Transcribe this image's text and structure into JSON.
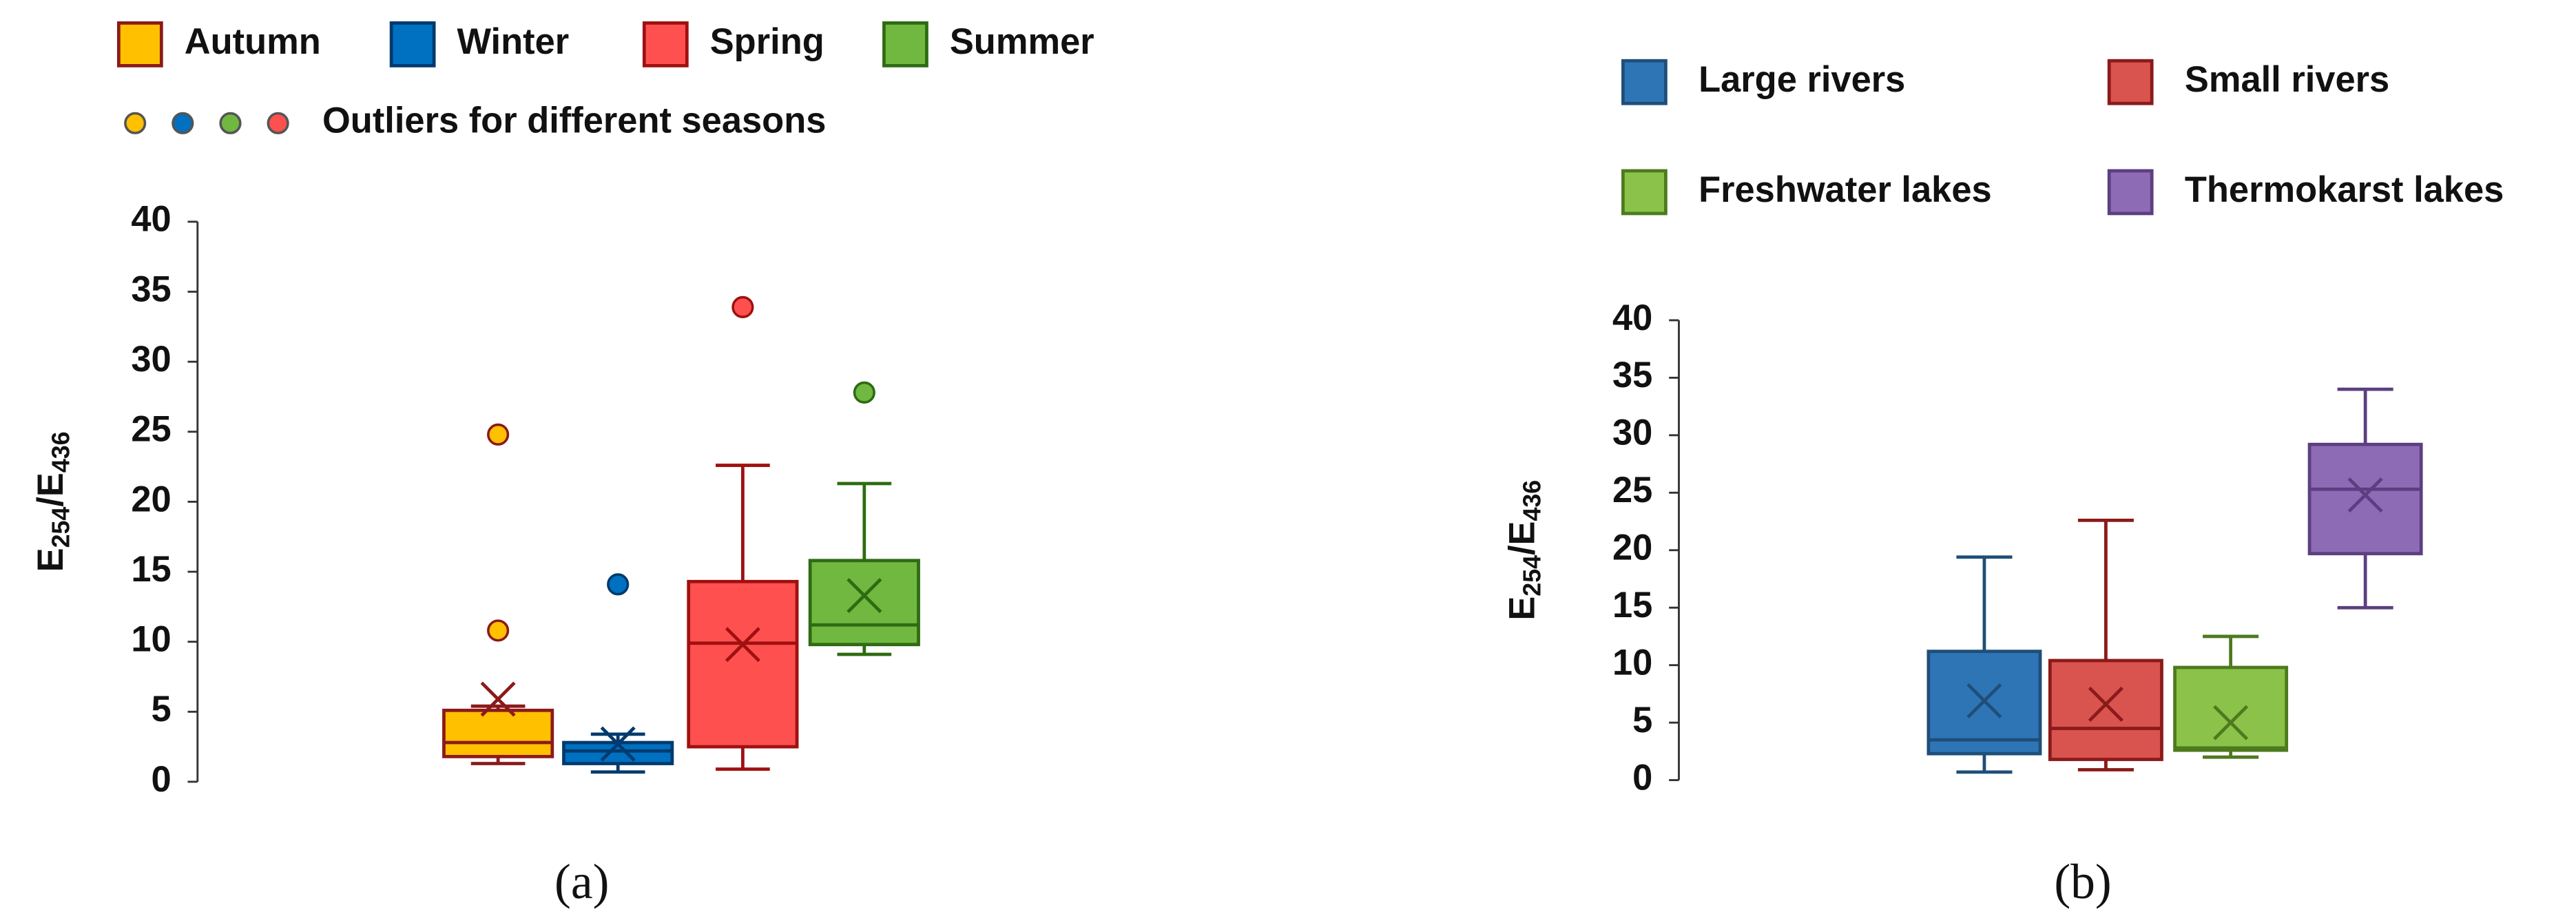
{
  "chart_data": [
    {
      "type": "box",
      "caption": "(a)",
      "ylabel_parts": [
        "E",
        "254",
        "/E",
        "436"
      ],
      "ylim": [
        0,
        40
      ],
      "yticks": [
        0,
        5,
        10,
        15,
        20,
        25,
        30,
        35,
        40
      ],
      "series": [
        {
          "name": "Autumn",
          "color": "#ffc000",
          "edge": "#8b1a1a",
          "whisker_low": 1.3,
          "q1": 1.8,
          "median": 2.8,
          "q3": 5.1,
          "whisker_high": 5.4,
          "mean": 5.9,
          "outliers": [
            10.8,
            24.8
          ]
        },
        {
          "name": "Winter",
          "color": "#0070c0",
          "edge": "#003a6e",
          "whisker_low": 0.7,
          "q1": 1.3,
          "median": 2.2,
          "q3": 2.8,
          "whisker_high": 3.4,
          "mean": 2.7,
          "outliers": [
            14.1
          ]
        },
        {
          "name": "Spring",
          "color": "#ff5050",
          "edge": "#a01010",
          "whisker_low": 0.9,
          "q1": 2.5,
          "median": 9.9,
          "q3": 14.3,
          "whisker_high": 22.6,
          "mean": 9.8,
          "outliers": [
            33.9
          ]
        },
        {
          "name": "Summer",
          "color": "#70b840",
          "edge": "#2e6b12",
          "whisker_low": 9.1,
          "q1": 9.8,
          "median": 11.2,
          "q3": 15.8,
          "whisker_high": 21.3,
          "mean": 13.3,
          "outliers": [
            27.8
          ]
        }
      ],
      "outlier_legend": {
        "label": "Outliers for different seasons",
        "colors": [
          "#ffc000",
          "#0070c0",
          "#70b840",
          "#ff5050"
        ]
      }
    },
    {
      "type": "box",
      "caption": "(b)",
      "ylabel_parts": [
        "E",
        "254",
        "/E",
        "436"
      ],
      "ylim": [
        0,
        40
      ],
      "yticks": [
        0,
        5,
        10,
        15,
        20,
        25,
        30,
        35,
        40
      ],
      "series": [
        {
          "name": "Large rivers",
          "color": "#2e75b6",
          "edge": "#1f4e79",
          "whisker_low": 0.7,
          "q1": 2.3,
          "median": 3.5,
          "q3": 11.2,
          "whisker_high": 19.4,
          "mean": 6.9,
          "outliers": []
        },
        {
          "name": "Small rivers",
          "color": "#d9534f",
          "edge": "#8b1a1a",
          "whisker_low": 0.9,
          "q1": 1.8,
          "median": 4.5,
          "q3": 10.4,
          "whisker_high": 22.6,
          "mean": 6.6,
          "outliers": []
        },
        {
          "name": "Freshwater lakes",
          "color": "#8bc34a",
          "edge": "#4e7a1e",
          "whisker_low": 2.0,
          "q1": 2.6,
          "median": 2.8,
          "q3": 9.8,
          "whisker_high": 12.5,
          "mean": 5.0,
          "outliers": []
        },
        {
          "name": "Thermokarst lakes",
          "color": "#8e6bb5",
          "edge": "#5b3f80",
          "whisker_low": 15.0,
          "q1": 19.7,
          "median": 25.3,
          "q3": 29.2,
          "whisker_high": 34.0,
          "mean": 24.8,
          "outliers": []
        }
      ]
    }
  ]
}
